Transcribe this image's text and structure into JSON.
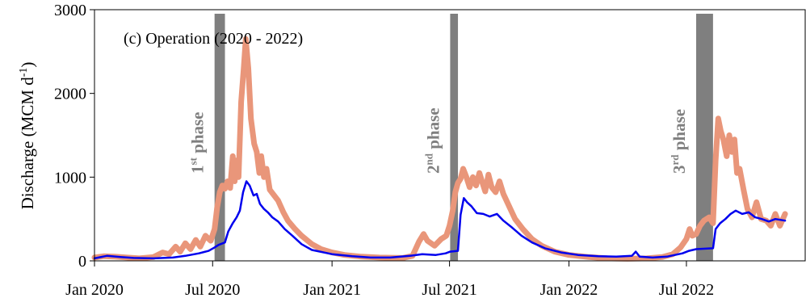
{
  "chart_data": {
    "type": "line",
    "title": "(c) Operation (2020 - 2022)",
    "ylabel_main": "Discharge (MCM d",
    "ylabel_sup": "-1",
    "ylabel_end": ")",
    "xlabel": "",
    "xlim": [
      "2020-01-01",
      "2022-12-31"
    ],
    "ylim": [
      0,
      3000
    ],
    "x_ticks": [
      {
        "date": "2020-01-01",
        "label": "Jan 2020"
      },
      {
        "date": "2020-07-01",
        "label": "Jul 2020"
      },
      {
        "date": "2021-01-01",
        "label": "Jan 2021"
      },
      {
        "date": "2021-07-01",
        "label": "Jul 2021"
      },
      {
        "date": "2022-01-01",
        "label": "Jan 2022"
      },
      {
        "date": "2022-07-01",
        "label": "Jul 2022"
      }
    ],
    "y_ticks": [
      {
        "value": 0,
        "label": "0"
      },
      {
        "value": 1000,
        "label": "1000"
      },
      {
        "value": 2000,
        "label": "2000"
      },
      {
        "value": 3000,
        "label": "3000"
      }
    ],
    "grid": false,
    "phases": [
      {
        "start": "2020-07-04",
        "end": "2020-07-20",
        "label_num": "1",
        "label_sup": "st",
        "label_word": " phase",
        "color": "#7f7f7f"
      },
      {
        "start": "2021-07-02",
        "end": "2021-07-14",
        "label_num": "2",
        "label_sup": "nd",
        "label_word": " phase",
        "color": "#7f7f7f"
      },
      {
        "start": "2022-07-16",
        "end": "2022-08-11",
        "label_num": "3",
        "label_sup": "rd",
        "label_word": " phase",
        "color": "#7f7f7f"
      }
    ],
    "series": [
      {
        "color": "#e9967a",
        "line_width": 7,
        "points": [
          [
            "2020-01-01",
            40
          ],
          [
            "2020-01-15",
            55
          ],
          [
            "2020-02-01",
            50
          ],
          [
            "2020-02-20",
            40
          ],
          [
            "2020-03-10",
            30
          ],
          [
            "2020-04-01",
            45
          ],
          [
            "2020-04-15",
            100
          ],
          [
            "2020-04-25",
            80
          ],
          [
            "2020-05-05",
            170
          ],
          [
            "2020-05-12",
            110
          ],
          [
            "2020-05-20",
            210
          ],
          [
            "2020-05-28",
            140
          ],
          [
            "2020-06-05",
            250
          ],
          [
            "2020-06-12",
            170
          ],
          [
            "2020-06-20",
            300
          ],
          [
            "2020-06-28",
            240
          ],
          [
            "2020-07-04",
            380
          ],
          [
            "2020-07-08",
            640
          ],
          [
            "2020-07-12",
            820
          ],
          [
            "2020-07-16",
            900
          ],
          [
            "2020-07-20",
            860
          ],
          [
            "2020-07-24",
            950
          ],
          [
            "2020-07-28",
            870
          ],
          [
            "2020-08-01",
            1250
          ],
          [
            "2020-08-04",
            950
          ],
          [
            "2020-08-07",
            1200
          ],
          [
            "2020-08-10",
            1000
          ],
          [
            "2020-08-14",
            1900
          ],
          [
            "2020-08-18",
            2300
          ],
          [
            "2020-08-21",
            2650
          ],
          [
            "2020-08-25",
            2300
          ],
          [
            "2020-08-29",
            1700
          ],
          [
            "2020-09-03",
            1400
          ],
          [
            "2020-09-07",
            1300
          ],
          [
            "2020-09-11",
            1050
          ],
          [
            "2020-09-14",
            1250
          ],
          [
            "2020-09-18",
            1000
          ],
          [
            "2020-09-22",
            1100
          ],
          [
            "2020-09-27",
            850
          ],
          [
            "2020-10-02",
            800
          ],
          [
            "2020-10-10",
            720
          ],
          [
            "2020-10-18",
            580
          ],
          [
            "2020-10-25",
            480
          ],
          [
            "2020-11-05",
            380
          ],
          [
            "2020-11-15",
            300
          ],
          [
            "2020-12-01",
            200
          ],
          [
            "2020-12-15",
            140
          ],
          [
            "2021-01-01",
            100
          ],
          [
            "2021-01-20",
            70
          ],
          [
            "2021-02-15",
            50
          ],
          [
            "2021-03-15",
            40
          ],
          [
            "2021-04-20",
            35
          ],
          [
            "2021-05-05",
            60
          ],
          [
            "2021-05-15",
            230
          ],
          [
            "2021-05-22",
            320
          ],
          [
            "2021-05-28",
            240
          ],
          [
            "2021-06-08",
            180
          ],
          [
            "2021-06-18",
            260
          ],
          [
            "2021-06-26",
            300
          ],
          [
            "2021-07-01",
            420
          ],
          [
            "2021-07-06",
            600
          ],
          [
            "2021-07-10",
            820
          ],
          [
            "2021-07-14",
            930
          ],
          [
            "2021-07-18",
            980
          ],
          [
            "2021-07-22",
            1100
          ],
          [
            "2021-07-27",
            1000
          ],
          [
            "2021-08-01",
            880
          ],
          [
            "2021-08-06",
            1000
          ],
          [
            "2021-08-11",
            900
          ],
          [
            "2021-08-16",
            1050
          ],
          [
            "2021-08-20",
            950
          ],
          [
            "2021-08-25",
            830
          ],
          [
            "2021-08-30",
            1030
          ],
          [
            "2021-09-04",
            880
          ],
          [
            "2021-09-10",
            820
          ],
          [
            "2021-09-16",
            950
          ],
          [
            "2021-09-22",
            800
          ],
          [
            "2021-10-01",
            650
          ],
          [
            "2021-10-10",
            500
          ],
          [
            "2021-10-22",
            380
          ],
          [
            "2021-11-05",
            260
          ],
          [
            "2021-11-20",
            180
          ],
          [
            "2021-12-10",
            110
          ],
          [
            "2022-01-01",
            70
          ],
          [
            "2022-02-01",
            45
          ],
          [
            "2022-03-01",
            30
          ],
          [
            "2022-04-01",
            25
          ],
          [
            "2022-05-01",
            30
          ],
          [
            "2022-05-25",
            45
          ],
          [
            "2022-06-10",
            80
          ],
          [
            "2022-06-22",
            160
          ],
          [
            "2022-07-01",
            260
          ],
          [
            "2022-07-06",
            380
          ],
          [
            "2022-07-10",
            300
          ],
          [
            "2022-07-16",
            320
          ],
          [
            "2022-07-22",
            420
          ],
          [
            "2022-07-28",
            480
          ],
          [
            "2022-08-05",
            520
          ],
          [
            "2022-08-11",
            450
          ],
          [
            "2022-08-15",
            1200
          ],
          [
            "2022-08-19",
            1700
          ],
          [
            "2022-08-23",
            1550
          ],
          [
            "2022-08-27",
            1450
          ],
          [
            "2022-09-01",
            1250
          ],
          [
            "2022-09-05",
            1500
          ],
          [
            "2022-09-09",
            1300
          ],
          [
            "2022-09-13",
            1450
          ],
          [
            "2022-09-17",
            1050
          ],
          [
            "2022-09-21",
            1100
          ],
          [
            "2022-09-27",
            850
          ],
          [
            "2022-10-03",
            620
          ],
          [
            "2022-10-10",
            520
          ],
          [
            "2022-10-17",
            700
          ],
          [
            "2022-10-24",
            500
          ],
          [
            "2022-11-01",
            480
          ],
          [
            "2022-11-08",
            420
          ],
          [
            "2022-11-15",
            560
          ],
          [
            "2022-11-22",
            420
          ],
          [
            "2022-11-30",
            560
          ]
        ]
      },
      {
        "color": "#0000ee",
        "line_width": 2.5,
        "points": [
          [
            "2020-01-01",
            30
          ],
          [
            "2020-01-20",
            60
          ],
          [
            "2020-02-10",
            45
          ],
          [
            "2020-03-01",
            35
          ],
          [
            "2020-04-01",
            30
          ],
          [
            "2020-05-01",
            40
          ],
          [
            "2020-05-20",
            60
          ],
          [
            "2020-06-10",
            90
          ],
          [
            "2020-06-25",
            120
          ],
          [
            "2020-07-04",
            160
          ],
          [
            "2020-07-10",
            190
          ],
          [
            "2020-07-20",
            220
          ],
          [
            "2020-07-25",
            350
          ],
          [
            "2020-08-01",
            450
          ],
          [
            "2020-08-07",
            520
          ],
          [
            "2020-08-12",
            600
          ],
          [
            "2020-08-17",
            820
          ],
          [
            "2020-08-22",
            950
          ],
          [
            "2020-08-27",
            900
          ],
          [
            "2020-09-02",
            780
          ],
          [
            "2020-09-07",
            800
          ],
          [
            "2020-09-12",
            680
          ],
          [
            "2020-09-18",
            620
          ],
          [
            "2020-09-24",
            580
          ],
          [
            "2020-10-01",
            520
          ],
          [
            "2020-10-10",
            470
          ],
          [
            "2020-10-20",
            380
          ],
          [
            "2020-11-01",
            300
          ],
          [
            "2020-11-15",
            200
          ],
          [
            "2020-12-01",
            130
          ],
          [
            "2021-01-01",
            80
          ],
          [
            "2021-02-01",
            55
          ],
          [
            "2021-03-01",
            40
          ],
          [
            "2021-04-01",
            40
          ],
          [
            "2021-05-01",
            60
          ],
          [
            "2021-05-20",
            80
          ],
          [
            "2021-06-10",
            70
          ],
          [
            "2021-06-25",
            90
          ],
          [
            "2021-07-02",
            110
          ],
          [
            "2021-07-14",
            120
          ],
          [
            "2021-07-18",
            550
          ],
          [
            "2021-07-23",
            750
          ],
          [
            "2021-07-28",
            700
          ],
          [
            "2021-08-04",
            650
          ],
          [
            "2021-08-12",
            570
          ],
          [
            "2021-08-22",
            560
          ],
          [
            "2021-09-01",
            530
          ],
          [
            "2021-09-12",
            560
          ],
          [
            "2021-09-22",
            480
          ],
          [
            "2021-10-05",
            400
          ],
          [
            "2021-10-20",
            300
          ],
          [
            "2021-11-05",
            220
          ],
          [
            "2021-11-25",
            150
          ],
          [
            "2021-12-20",
            100
          ],
          [
            "2022-01-15",
            70
          ],
          [
            "2022-02-15",
            55
          ],
          [
            "2022-03-15",
            50
          ],
          [
            "2022-04-08",
            60
          ],
          [
            "2022-04-14",
            110
          ],
          [
            "2022-04-20",
            50
          ],
          [
            "2022-05-10",
            40
          ],
          [
            "2022-06-01",
            50
          ],
          [
            "2022-06-25",
            90
          ],
          [
            "2022-07-05",
            120
          ],
          [
            "2022-07-16",
            140
          ],
          [
            "2022-08-11",
            150
          ],
          [
            "2022-08-15",
            380
          ],
          [
            "2022-08-22",
            450
          ],
          [
            "2022-08-30",
            500
          ],
          [
            "2022-09-07",
            560
          ],
          [
            "2022-09-15",
            600
          ],
          [
            "2022-09-25",
            560
          ],
          [
            "2022-10-05",
            580
          ],
          [
            "2022-10-15",
            520
          ],
          [
            "2022-10-25",
            500
          ],
          [
            "2022-11-05",
            470
          ],
          [
            "2022-11-15",
            500
          ],
          [
            "2022-11-30",
            480
          ]
        ]
      }
    ]
  }
}
